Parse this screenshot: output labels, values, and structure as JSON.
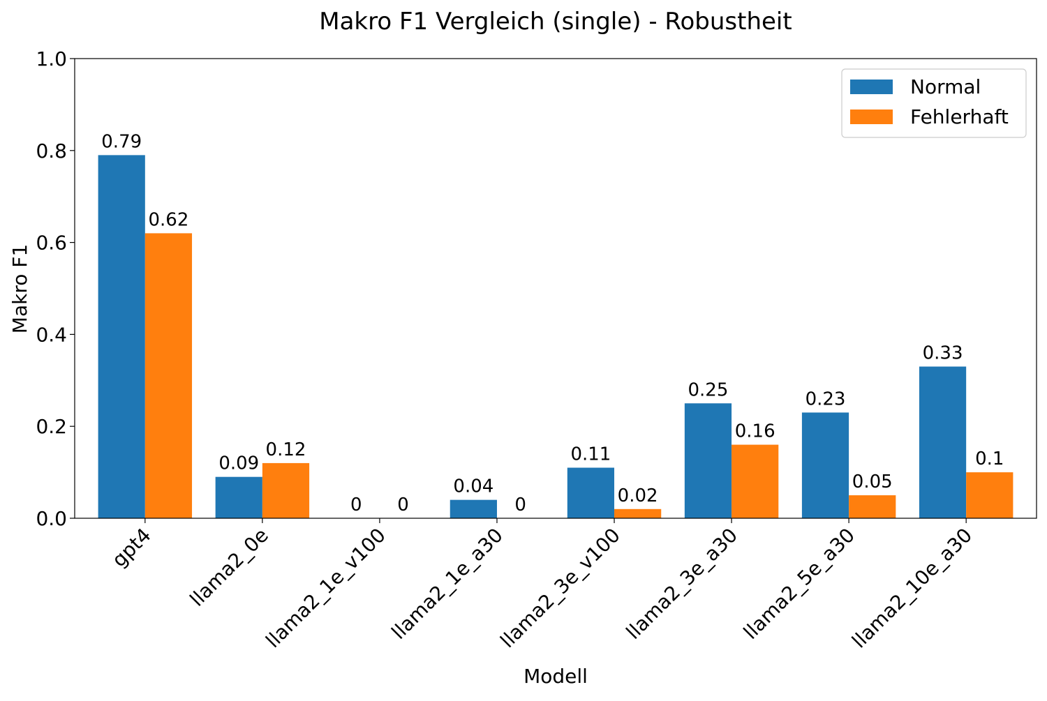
{
  "chart_data": {
    "type": "bar",
    "title": "Makro F1 Vergleich (single) - Robustheit",
    "xlabel": "Modell",
    "ylabel": "Makro F1",
    "ylim": [
      0,
      1.0
    ],
    "yticks": [
      "0.0",
      "0.2",
      "0.4",
      "0.6",
      "0.8",
      "1.0"
    ],
    "grid": false,
    "legend_position": "top-right",
    "categories": [
      "gpt4",
      "llama2_0e",
      "llama2_1e_v100",
      "llama2_1e_a30",
      "llama2_3e_v100",
      "llama2_3e_a30",
      "llama2_5e_a30",
      "llama2_10e_a30"
    ],
    "series": [
      {
        "name": "Normal",
        "color": "#1f77b4",
        "values": [
          0.79,
          0.09,
          0,
          0.04,
          0.11,
          0.25,
          0.23,
          0.33
        ],
        "labels": [
          "0.79",
          "0.09",
          "0",
          "0.04",
          "0.11",
          "0.25",
          "0.23",
          "0.33"
        ]
      },
      {
        "name": "Fehlerhaft",
        "color": "#ff7f0e",
        "values": [
          0.62,
          0.12,
          0,
          0,
          0.02,
          0.16,
          0.05,
          0.1
        ],
        "labels": [
          "0.62",
          "0.12",
          "0",
          "0",
          "0.02",
          "0.16",
          "0.05",
          "0.1"
        ]
      }
    ]
  }
}
